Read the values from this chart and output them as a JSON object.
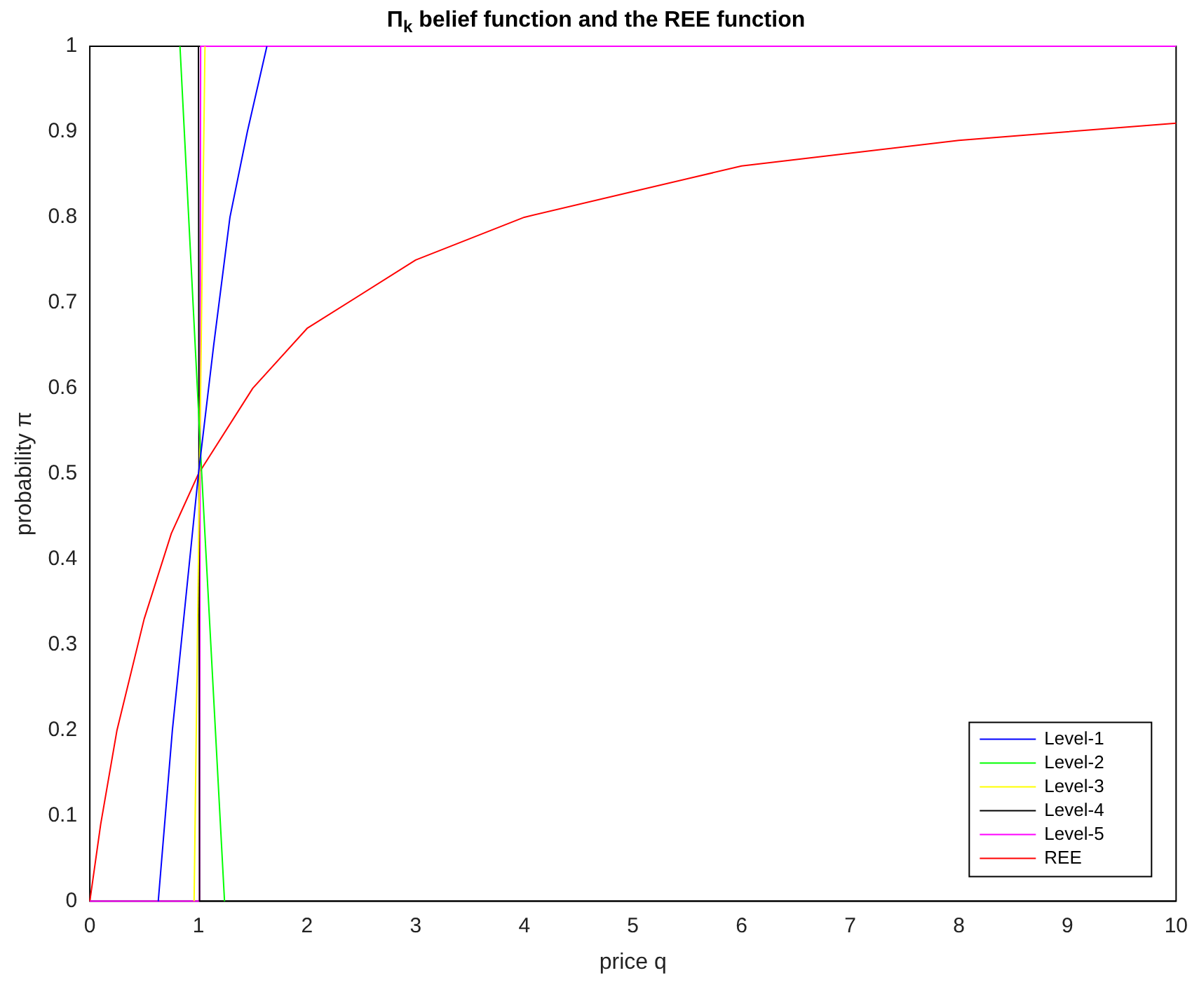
{
  "chart_data": {
    "type": "line",
    "title": "Π$_{k}$ belief function and the REE function",
    "xlabel": "price q",
    "ylabel": "probability π",
    "xlim": [
      0,
      10
    ],
    "ylim": [
      0,
      1
    ],
    "xticks": [
      0,
      1,
      2,
      3,
      4,
      5,
      6,
      7,
      8,
      9,
      10
    ],
    "yticks": [
      0,
      0.1,
      0.2,
      0.3,
      0.4,
      0.5,
      0.6,
      0.7,
      0.8,
      0.9,
      1
    ],
    "grid": false,
    "legend": "bottom right",
    "marker": "none",
    "line_style": "solid",
    "series": [
      {
        "name": "Level-1",
        "color": "#0000ff",
        "x": [
          0.63,
          0.76,
          0.88,
          1,
          1.14,
          1.29,
          1.45,
          1.63
        ],
        "values": [
          0,
          0.2,
          0.35,
          0.5,
          0.65,
          0.8,
          0.9,
          1
        ]
      },
      {
        "name": "Level-2",
        "color": "#00ff00",
        "x": [
          0.83,
          1.03,
          1.24
        ],
        "values": [
          1,
          0.5,
          0
        ]
      },
      {
        "name": "Level-3",
        "color": "#ffff00",
        "x": [
          0.96,
          1.06
        ],
        "values": [
          0,
          1
        ]
      },
      {
        "name": "Level-4",
        "color": "#000000",
        "x": [
          0,
          1,
          1.01,
          10
        ],
        "values": [
          1,
          1,
          0,
          0
        ]
      },
      {
        "name": "Level-5",
        "color": "#ff00ff",
        "x": [
          0,
          1.01,
          1.02,
          10
        ],
        "values": [
          0,
          0,
          1,
          1
        ]
      },
      {
        "name": "REE",
        "color": "#ff0000",
        "x": [
          0,
          0.1,
          0.25,
          0.5,
          0.75,
          1,
          1.5,
          2,
          3,
          4,
          5,
          6,
          7,
          8,
          9,
          10
        ],
        "values": [
          0,
          0.09,
          0.2,
          0.33,
          0.43,
          0.5,
          0.6,
          0.67,
          0.75,
          0.8,
          0.83,
          0.86,
          0.875,
          0.89,
          0.9,
          0.91
        ]
      }
    ]
  }
}
